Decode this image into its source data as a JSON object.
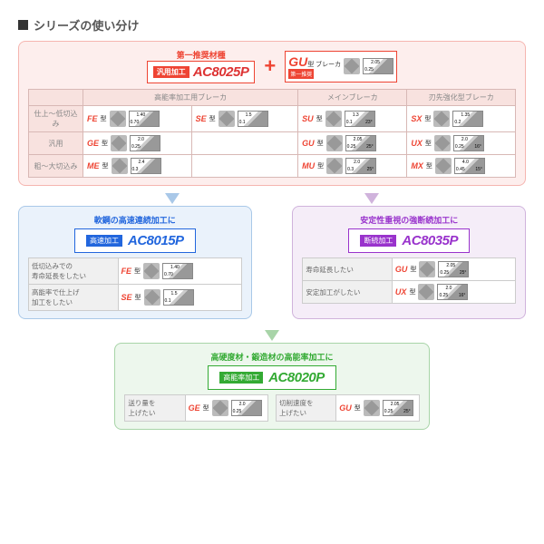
{
  "title": "シリーズの使い分け",
  "top": {
    "recommend_label": "第一推奨材種",
    "univ_tag": "汎用加工",
    "main_grade": "AC8025P",
    "gu_label": "GU",
    "gu_suffix": "型 ブレーカ",
    "gu_tiny": "第一推奨",
    "cols": [
      "高能率加工用ブレーカ",
      "メインブレーカ",
      "刃先強化型ブレーカ"
    ],
    "rows": [
      {
        "label": "仕上～低切込み",
        "cells": [
          {
            "code": "FE",
            "sm": "型",
            "d1": "1.40",
            "d2": "0.70",
            "d3": ""
          },
          {
            "code": "SE",
            "sm": "型",
            "d1": "1.5",
            "d2": "0.1",
            "d3": ""
          },
          {
            "code": "SU",
            "sm": "型",
            "d1": "1.3",
            "d2": "0.1",
            "d3": "23°"
          },
          {
            "code": "SX",
            "sm": "型",
            "d1": "1.35",
            "d2": "0.2",
            "d3": ""
          }
        ]
      },
      {
        "label": "汎用",
        "cells": [
          {
            "code": "GE",
            "sm": "型",
            "d1": "2.0",
            "d2": "0.25",
            "d3": ""
          },
          null,
          {
            "code": "GU",
            "sm": "型",
            "d1": "2.05",
            "d2": "0.25",
            "d3": "25°"
          },
          {
            "code": "UX",
            "sm": "型",
            "d1": "2.0",
            "d2": "0.25",
            "d3": "16°"
          }
        ]
      },
      {
        "label": "粗～大切込み",
        "cells": [
          {
            "code": "ME",
            "sm": "型",
            "d1": "2.4",
            "d2": "0.3",
            "d3": ""
          },
          null,
          {
            "code": "MU",
            "sm": "型",
            "d1": "2.0",
            "d2": "0.3",
            "d3": "25°"
          },
          {
            "code": "MX",
            "sm": "型",
            "d1": "4.0",
            "d2": "0.45",
            "d3": "15°"
          }
        ]
      }
    ]
  },
  "mid_left": {
    "title": "軟鋼の高速連続加工に",
    "tag": "高速加工",
    "grade": "AC8015P",
    "rows": [
      {
        "desc": "低切込みでの\n寿命延長をしたい",
        "code": "FE",
        "sm": "型",
        "d1": "1.40",
        "d2": "0.70"
      },
      {
        "desc": "高能率で仕上げ\n加工をしたい",
        "code": "SE",
        "sm": "型",
        "d1": "1.5",
        "d2": "0.1"
      }
    ]
  },
  "mid_right": {
    "title": "安定性重視の強断続加工に",
    "tag": "断続加工",
    "grade": "AC8035P",
    "rows": [
      {
        "desc": "寿命延長したい",
        "code": "GU",
        "sm": "型",
        "d1": "2.05",
        "d2": "0.25",
        "d3": "25°"
      },
      {
        "desc": "安定加工がしたい",
        "code": "UX",
        "sm": "型",
        "d1": "2.0",
        "d2": "0.25",
        "d3": "16°"
      }
    ]
  },
  "bottom": {
    "title": "高硬度材・鍛造材の高能率加工に",
    "tag": "高能率加工",
    "grade": "AC8020P",
    "rows": [
      {
        "desc": "送り量を\n上げたい",
        "code": "GE",
        "sm": "型",
        "d1": "2.0",
        "d2": "0.25"
      },
      {
        "desc": "切削速度を\n上げたい",
        "code": "GU",
        "sm": "型",
        "d1": "2.05",
        "d2": "0.25",
        "d3": "25°"
      }
    ]
  },
  "colors": {
    "red": "#e43",
    "blue": "#26d",
    "purple": "#93c",
    "green": "#3a3"
  }
}
